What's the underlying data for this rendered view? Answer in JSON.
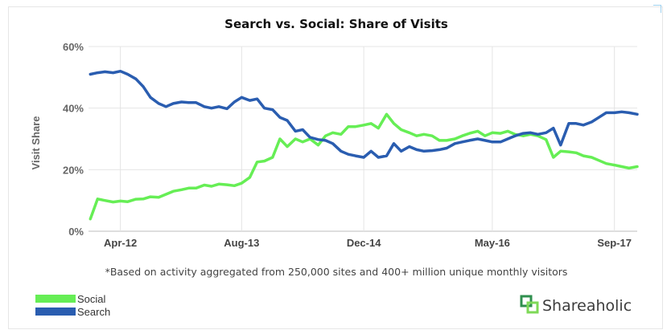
{
  "chart_data": {
    "type": "line",
    "title": "Search vs. Social: Share of Visits",
    "ylabel": "Visit Share",
    "xlabel": "",
    "y_ticks": [
      "0%",
      "20%",
      "40%",
      "60%"
    ],
    "ylim": [
      0,
      60
    ],
    "x_ticks": [
      "Apr-12",
      "Aug-13",
      "Dec-14",
      "May-16",
      "Sep-17"
    ],
    "x_tick_positions": [
      2012.25,
      2013.58,
      2014.92,
      2016.33,
      2017.67
    ],
    "xlim": [
      2011.9,
      2017.92
    ],
    "grid": true,
    "legend_position": "bottom-left",
    "footnote": "*Based on activity aggregated from 250,000 sites and 400+ million unique monthly visitors",
    "series": [
      {
        "name": "Social",
        "color": "#66ee55",
        "x": [
          2011.92,
          2012.0,
          2012.08,
          2012.17,
          2012.25,
          2012.33,
          2012.42,
          2012.5,
          2012.58,
          2012.67,
          2012.75,
          2012.83,
          2012.92,
          2013.0,
          2013.08,
          2013.17,
          2013.25,
          2013.33,
          2013.42,
          2013.5,
          2013.58,
          2013.67,
          2013.75,
          2013.83,
          2013.92,
          2014.0,
          2014.08,
          2014.17,
          2014.25,
          2014.33,
          2014.42,
          2014.5,
          2014.58,
          2014.67,
          2014.75,
          2014.83,
          2014.92,
          2015.0,
          2015.08,
          2015.17,
          2015.25,
          2015.33,
          2015.42,
          2015.5,
          2015.58,
          2015.67,
          2015.75,
          2015.83,
          2015.92,
          2016.0,
          2016.08,
          2016.17,
          2016.25,
          2016.33,
          2016.42,
          2016.5,
          2016.58,
          2016.67,
          2016.75,
          2016.83,
          2016.92,
          2017.0,
          2017.08,
          2017.17,
          2017.25,
          2017.33,
          2017.42,
          2017.5,
          2017.58,
          2017.67,
          2017.75,
          2017.83,
          2017.92
        ],
        "values": [
          4,
          10.5,
          10,
          9.5,
          9.8,
          9.6,
          10.4,
          10.5,
          11.2,
          11,
          12,
          13,
          13.5,
          14,
          14,
          15,
          14.6,
          15.3,
          15.1,
          14.8,
          15.6,
          17.5,
          22.5,
          22.8,
          24,
          30,
          27.5,
          30,
          29,
          30,
          28,
          31,
          32,
          31.5,
          34,
          34,
          34.5,
          35,
          33.5,
          38,
          35,
          33,
          32,
          31,
          31.5,
          31,
          29.5,
          29.5,
          30,
          31,
          31.8,
          32.5,
          31,
          32,
          31.8,
          32.5,
          31.5,
          31,
          31.5,
          31,
          29.8,
          24,
          26,
          25.8,
          25.5,
          24.5,
          24,
          23,
          22,
          21.5,
          21,
          20.5,
          21
        ]
      },
      {
        "name": "Search",
        "color": "#2a5db0",
        "x": [
          2011.92,
          2012.0,
          2012.08,
          2012.17,
          2012.25,
          2012.33,
          2012.42,
          2012.5,
          2012.58,
          2012.67,
          2012.75,
          2012.83,
          2012.92,
          2013.0,
          2013.08,
          2013.17,
          2013.25,
          2013.33,
          2013.42,
          2013.5,
          2013.58,
          2013.67,
          2013.75,
          2013.83,
          2013.92,
          2014.0,
          2014.08,
          2014.17,
          2014.25,
          2014.33,
          2014.42,
          2014.5,
          2014.58,
          2014.67,
          2014.75,
          2014.83,
          2014.92,
          2015.0,
          2015.08,
          2015.17,
          2015.25,
          2015.33,
          2015.42,
          2015.5,
          2015.58,
          2015.67,
          2015.75,
          2015.83,
          2015.92,
          2016.0,
          2016.08,
          2016.17,
          2016.25,
          2016.33,
          2016.42,
          2016.5,
          2016.58,
          2016.67,
          2016.75,
          2016.83,
          2016.92,
          2017.0,
          2017.08,
          2017.17,
          2017.25,
          2017.33,
          2017.42,
          2017.5,
          2017.58,
          2017.67,
          2017.75,
          2017.83,
          2017.92
        ],
        "values": [
          51,
          51.5,
          51.8,
          51.5,
          52,
          51,
          49.5,
          47,
          43.5,
          41.5,
          40.5,
          41.5,
          42,
          41.8,
          41.8,
          40.5,
          40,
          40.5,
          39.8,
          42,
          43.5,
          42.5,
          43,
          40,
          39.5,
          37,
          36,
          32.5,
          33,
          30.5,
          29.8,
          29.5,
          28.5,
          26,
          25,
          24.5,
          24,
          26,
          24,
          24.5,
          28.5,
          26,
          27.5,
          26.5,
          26,
          26.2,
          26.5,
          27,
          28.5,
          29,
          29.5,
          30,
          29.5,
          29,
          29,
          30,
          31,
          31.8,
          32,
          31.5,
          32,
          33.5,
          28,
          35,
          35,
          34.5,
          35.5,
          37,
          38.5,
          38.5,
          38.8,
          38.5,
          38
        ]
      }
    ]
  },
  "legend": [
    {
      "label": "Social",
      "color": "#66ee55"
    },
    {
      "label": "Search",
      "color": "#2a5db0"
    }
  ],
  "brand": {
    "name": "Shareaholic"
  }
}
